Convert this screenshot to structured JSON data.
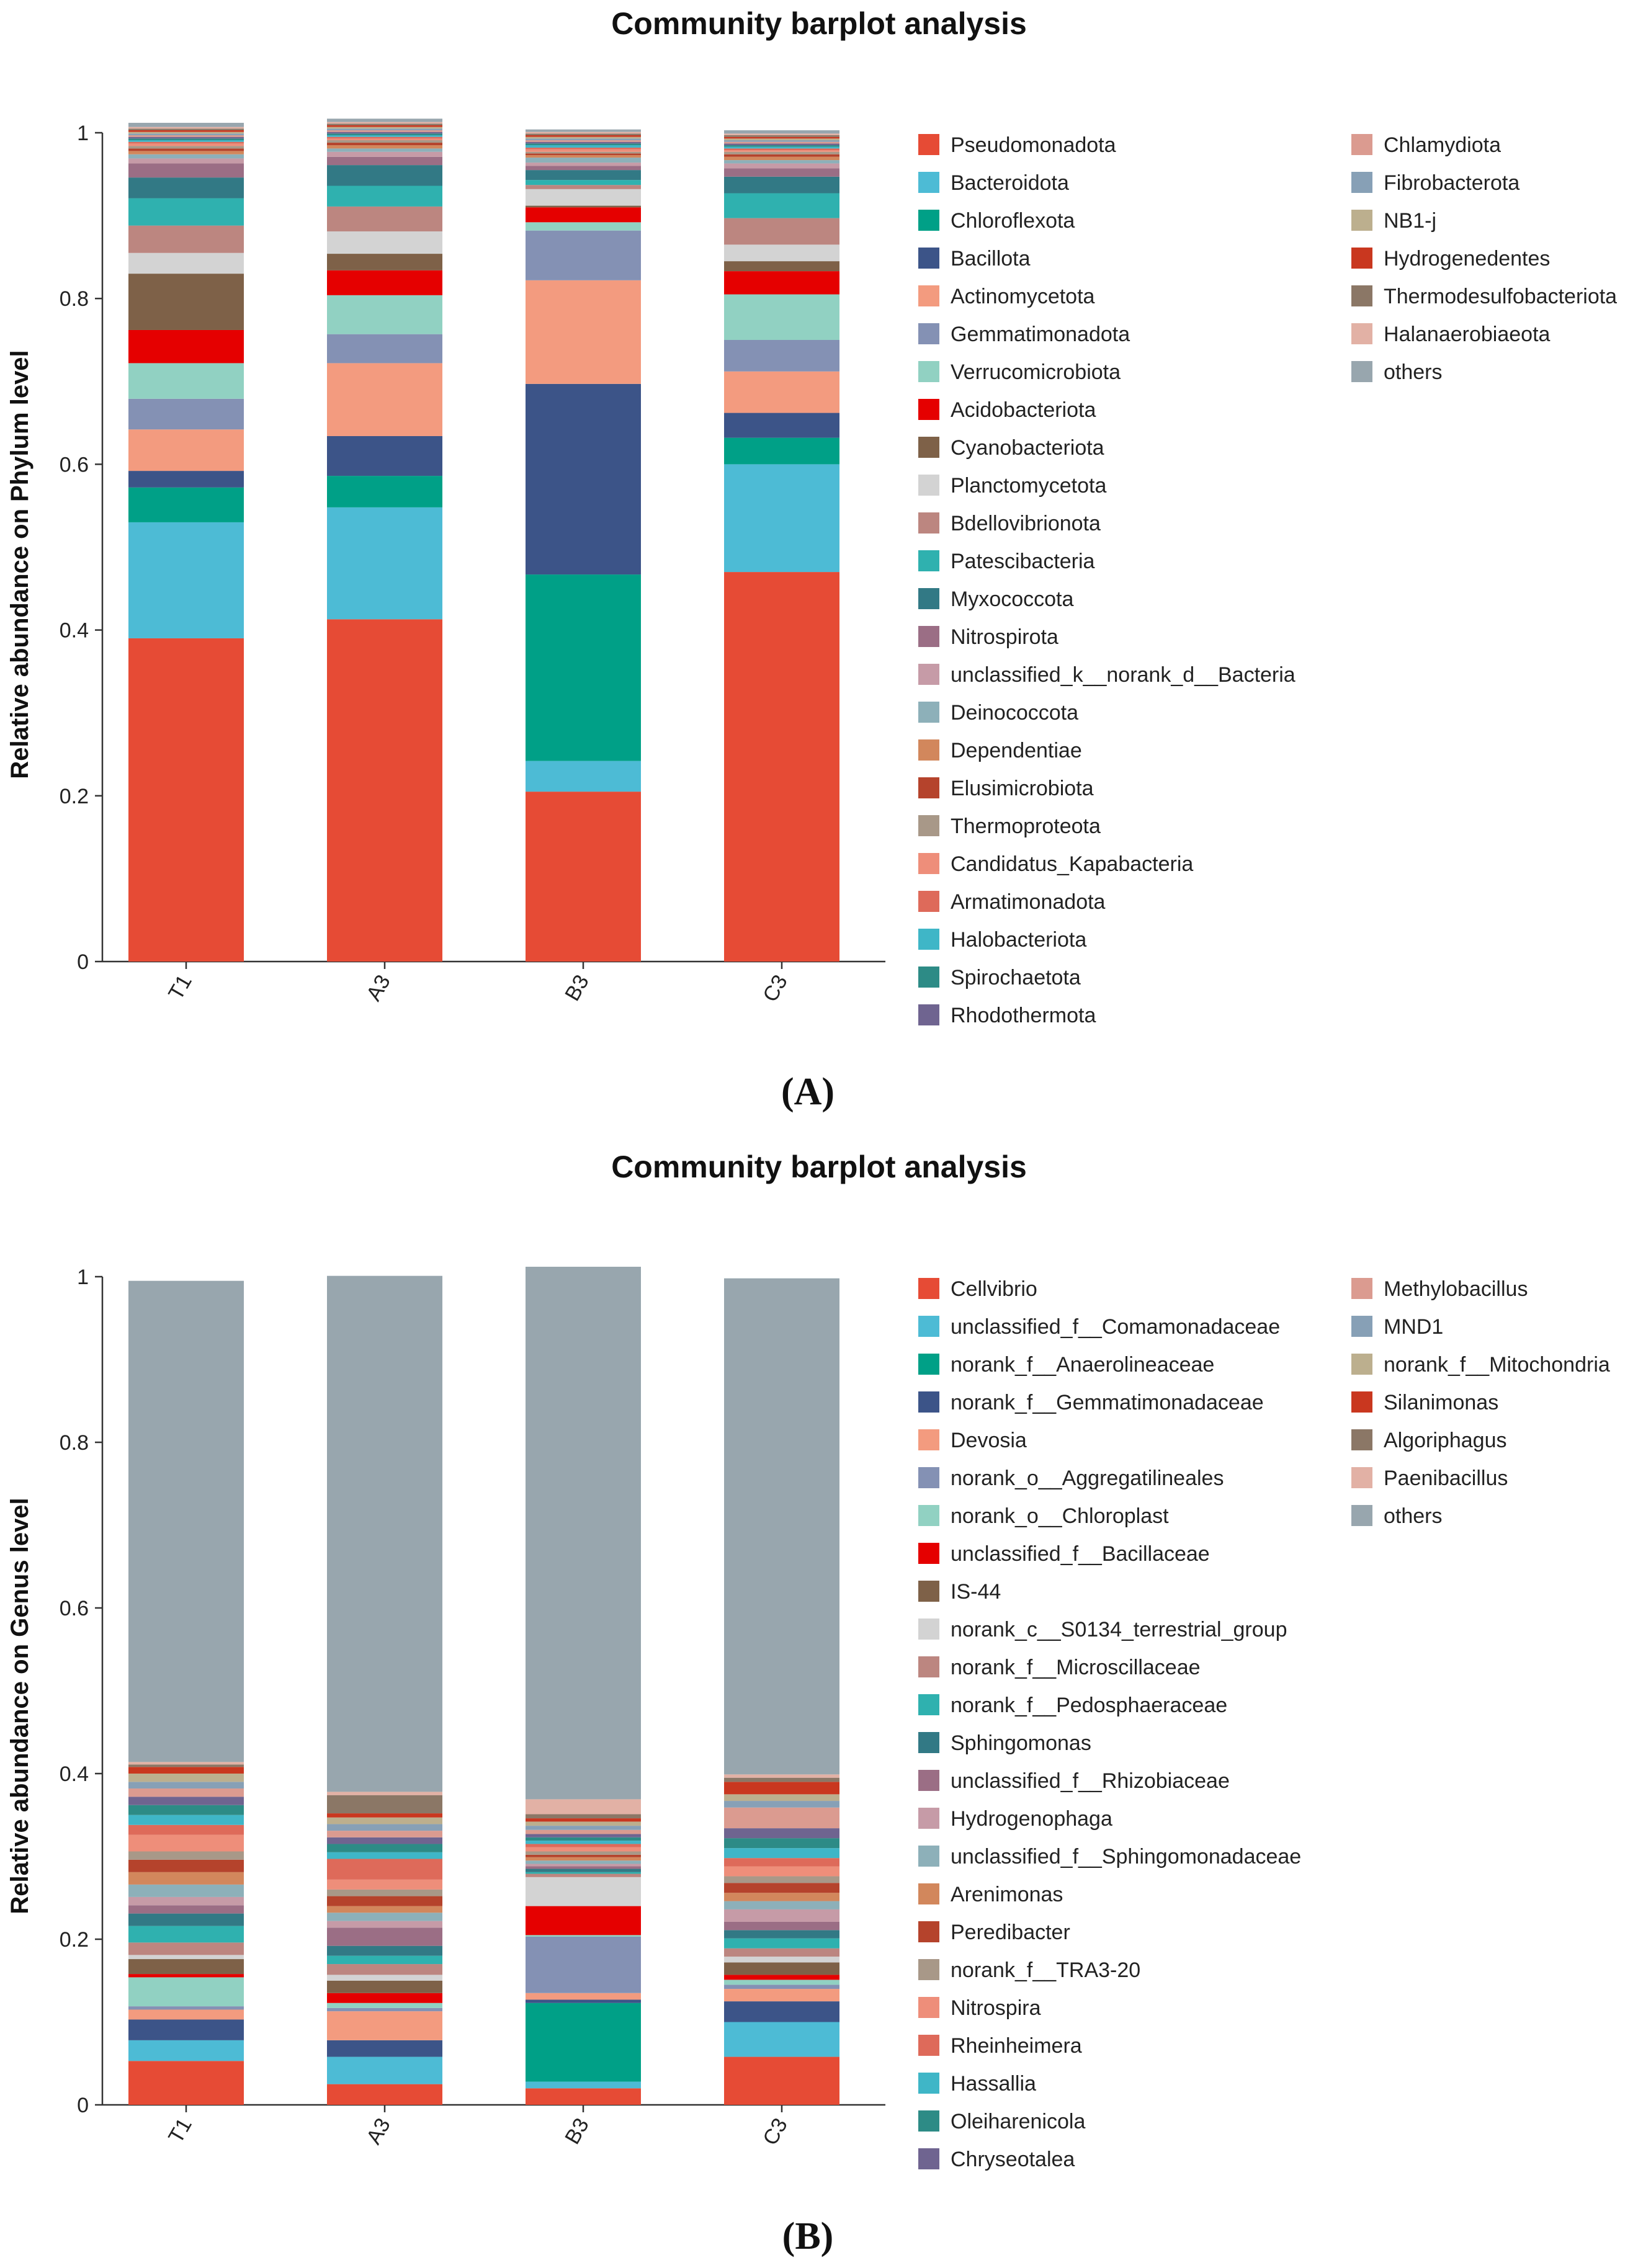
{
  "chart_data": [
    {
      "type": "bar",
      "stacked": true,
      "panel_label": "(A)",
      "title": "Community barplot analysis",
      "xlabel": "",
      "ylabel": "Relative abundance on Phylum level",
      "ylim": [
        0,
        1
      ],
      "yticks": [
        "0",
        "0.2",
        "0.4",
        "0.6",
        "0.8",
        "1"
      ],
      "categories": [
        "T1",
        "A3",
        "B3",
        "C3"
      ],
      "legend_position": "right",
      "series": [
        {
          "name": "Pseudomonadota",
          "color": "#E64B35",
          "values": [
            0.39,
            0.413,
            0.205,
            0.47
          ]
        },
        {
          "name": "Bacteroidota",
          "color": "#4DBBD5",
          "values": [
            0.14,
            0.135,
            0.037,
            0.13
          ]
        },
        {
          "name": "Chloroflexota",
          "color": "#00A087",
          "values": [
            0.042,
            0.038,
            0.225,
            0.032
          ]
        },
        {
          "name": "Bacillota",
          "color": "#3C5488",
          "values": [
            0.02,
            0.048,
            0.23,
            0.03
          ]
        },
        {
          "name": "Actinomycetota",
          "color": "#F39B7F",
          "values": [
            0.05,
            0.088,
            0.125,
            0.05
          ]
        },
        {
          "name": "Gemmatimonadota",
          "color": "#8491B4",
          "values": [
            0.037,
            0.035,
            0.06,
            0.038
          ]
        },
        {
          "name": "Verrucomicrobiota",
          "color": "#91D1C2",
          "values": [
            0.043,
            0.047,
            0.01,
            0.055
          ]
        },
        {
          "name": "Acidobacteriota",
          "color": "#E50000",
          "values": [
            0.04,
            0.03,
            0.018,
            0.028
          ]
        },
        {
          "name": "Cyanobacteriota",
          "color": "#7E6148",
          "values": [
            0.068,
            0.02,
            0.002,
            0.012
          ]
        },
        {
          "name": "Planctomycetota",
          "color": "#D3D3D3",
          "values": [
            0.025,
            0.027,
            0.02,
            0.02
          ]
        },
        {
          "name": "Bdellovibrionota",
          "color": "#BC8680",
          "values": [
            0.033,
            0.03,
            0.005,
            0.032
          ]
        },
        {
          "name": "Patescibacteria",
          "color": "#2FB1AF",
          "values": [
            0.033,
            0.025,
            0.006,
            0.03
          ]
        },
        {
          "name": "Myxococcota",
          "color": "#327985",
          "values": [
            0.025,
            0.025,
            0.012,
            0.02
          ]
        },
        {
          "name": "Nitrospirota",
          "color": "#9B6E85",
          "values": [
            0.017,
            0.01,
            0.005,
            0.01
          ]
        },
        {
          "name": "unclassified_k__norank_d__Bacteria",
          "color": "#C69BA7",
          "values": [
            0.006,
            0.006,
            0.004,
            0.006
          ]
        },
        {
          "name": "Deinococcota",
          "color": "#8DB0B9",
          "values": [
            0.005,
            0.004,
            0.006,
            0.004
          ]
        },
        {
          "name": "Dependentiae",
          "color": "#D2875C",
          "values": [
            0.004,
            0.004,
            0.003,
            0.004
          ]
        },
        {
          "name": "Elusimicrobiota",
          "color": "#B5432C",
          "values": [
            0.003,
            0.003,
            0.002,
            0.003
          ]
        },
        {
          "name": "Thermoproteota",
          "color": "#A89888",
          "values": [
            0.003,
            0.003,
            0.002,
            0.003
          ]
        },
        {
          "name": "Candidatus_Kapabacteria",
          "color": "#EE8E7A",
          "values": [
            0.003,
            0.002,
            0.003,
            0.002
          ]
        },
        {
          "name": "Armatimonadota",
          "color": "#DE6A5A",
          "values": [
            0.002,
            0.002,
            0.002,
            0.002
          ]
        },
        {
          "name": "Halobacteriota",
          "color": "#3FB6C7",
          "values": [
            0.002,
            0.002,
            0.003,
            0.002
          ]
        },
        {
          "name": "Spirochaetota",
          "color": "#2D8B86",
          "values": [
            0.002,
            0.002,
            0.002,
            0.002
          ]
        },
        {
          "name": "Rhodothermota",
          "color": "#6F6490",
          "values": [
            0.002,
            0.002,
            0.002,
            0.002
          ]
        },
        {
          "name": "Chlamydiota",
          "color": "#DB9B90",
          "values": [
            0.002,
            0.002,
            0.002,
            0.002
          ]
        },
        {
          "name": "Fibrobacterota",
          "color": "#87A0B6",
          "values": [
            0.002,
            0.002,
            0.002,
            0.002
          ]
        },
        {
          "name": "NB1-j",
          "color": "#BCAF8E",
          "values": [
            0.002,
            0.002,
            0.002,
            0.002
          ]
        },
        {
          "name": "Hydrogenedentes",
          "color": "#C9371F",
          "values": [
            0.002,
            0.002,
            0.002,
            0.002
          ]
        },
        {
          "name": "Thermodesulfobacteriota",
          "color": "#8B7766",
          "values": [
            0.002,
            0.002,
            0.002,
            0.002
          ]
        },
        {
          "name": "Halanaerobiaeota",
          "color": "#E2B1A5",
          "values": [
            0.002,
            0.002,
            0.002,
            0.002
          ]
        },
        {
          "name": "others",
          "color": "#98A6AE",
          "values": [
            0.005,
            0.004,
            0.003,
            0.004
          ]
        }
      ]
    },
    {
      "type": "bar",
      "stacked": true,
      "panel_label": "(B)",
      "title": "Community barplot analysis",
      "xlabel": "",
      "ylabel": "Relative abundance on Genus level",
      "ylim": [
        0,
        1
      ],
      "yticks": [
        "0",
        "0.2",
        "0.4",
        "0.6",
        "0.8",
        "1"
      ],
      "categories": [
        "T1",
        "A3",
        "B3",
        "C3"
      ],
      "legend_position": "right",
      "series": [
        {
          "name": "Cellvibrio",
          "color": "#E64B35",
          "values": [
            0.053,
            0.025,
            0.02,
            0.058
          ]
        },
        {
          "name": "unclassified_f__Comamonadaceae",
          "color": "#4DBBD5",
          "values": [
            0.025,
            0.033,
            0.008,
            0.042
          ]
        },
        {
          "name": "norank_f__Anaerolineaceae",
          "color": "#00A087",
          "values": [
            0.0,
            0.0,
            0.095,
            0.0
          ]
        },
        {
          "name": "norank_f__Gemmatimonadaceae",
          "color": "#3C5488",
          "values": [
            0.025,
            0.02,
            0.004,
            0.025
          ]
        },
        {
          "name": "Devosia",
          "color": "#F39B7F",
          "values": [
            0.012,
            0.035,
            0.008,
            0.015
          ]
        },
        {
          "name": "norank_o__Aggregatilineales",
          "color": "#8491B4",
          "values": [
            0.004,
            0.004,
            0.068,
            0.005
          ]
        },
        {
          "name": "norank_o__Chloroplast",
          "color": "#91D1C2",
          "values": [
            0.035,
            0.006,
            0.002,
            0.006
          ]
        },
        {
          "name": "unclassified_f__Bacillaceae",
          "color": "#E50000",
          "values": [
            0.004,
            0.012,
            0.035,
            0.006
          ]
        },
        {
          "name": "IS-44",
          "color": "#7E6148",
          "values": [
            0.018,
            0.015,
            0.0,
            0.015
          ]
        },
        {
          "name": "norank_c__S0134_terrestrial_group",
          "color": "#D3D3D3",
          "values": [
            0.005,
            0.007,
            0.035,
            0.007
          ]
        },
        {
          "name": "norank_f__Microscillaceae",
          "color": "#BC8680",
          "values": [
            0.015,
            0.013,
            0.004,
            0.01
          ]
        },
        {
          "name": "norank_f__Pedosphaeraceae",
          "color": "#2FB1AF",
          "values": [
            0.02,
            0.01,
            0.002,
            0.012
          ]
        },
        {
          "name": "Sphingomonas",
          "color": "#327985",
          "values": [
            0.015,
            0.012,
            0.004,
            0.01
          ]
        },
        {
          "name": "unclassified_f__Rhizobiaceae",
          "color": "#9B6E85",
          "values": [
            0.01,
            0.022,
            0.003,
            0.01
          ]
        },
        {
          "name": "Hydrogenophaga",
          "color": "#C69BA7",
          "values": [
            0.01,
            0.008,
            0.003,
            0.015
          ]
        },
        {
          "name": "unclassified_f__Sphingomonadaceae",
          "color": "#8DB0B9",
          "values": [
            0.015,
            0.01,
            0.004,
            0.01
          ]
        },
        {
          "name": "Arenimonas",
          "color": "#D2875C",
          "values": [
            0.015,
            0.008,
            0.004,
            0.01
          ]
        },
        {
          "name": "Peredibacter",
          "color": "#B5432C",
          "values": [
            0.015,
            0.012,
            0.003,
            0.012
          ]
        },
        {
          "name": "norank_f__TRA3-20",
          "color": "#A89888",
          "values": [
            0.01,
            0.008,
            0.004,
            0.008
          ]
        },
        {
          "name": "Nitrospira",
          "color": "#EE8E7A",
          "values": [
            0.02,
            0.012,
            0.005,
            0.012
          ]
        },
        {
          "name": "Rheinheimera",
          "color": "#DE6A5A",
          "values": [
            0.012,
            0.025,
            0.004,
            0.01
          ]
        },
        {
          "name": "Hassallia",
          "color": "#3FB6C7",
          "values": [
            0.012,
            0.008,
            0.004,
            0.012
          ]
        },
        {
          "name": "Oleiharenicola",
          "color": "#2D8B86",
          "values": [
            0.012,
            0.01,
            0.004,
            0.012
          ]
        },
        {
          "name": "Chryseotalea",
          "color": "#6F6490",
          "values": [
            0.01,
            0.008,
            0.004,
            0.012
          ]
        },
        {
          "name": "Methylobacillus",
          "color": "#DB9B90",
          "values": [
            0.01,
            0.008,
            0.005,
            0.025
          ]
        },
        {
          "name": "MND1",
          "color": "#87A0B6",
          "values": [
            0.008,
            0.008,
            0.005,
            0.008
          ]
        },
        {
          "name": "norank_f__Mitochondria",
          "color": "#BCAF8E",
          "values": [
            0.01,
            0.008,
            0.005,
            0.008
          ]
        },
        {
          "name": "Silanimonas",
          "color": "#C9371F",
          "values": [
            0.008,
            0.005,
            0.004,
            0.015
          ]
        },
        {
          "name": "Algoriphagus",
          "color": "#8B7766",
          "values": [
            0.003,
            0.022,
            0.005,
            0.005
          ]
        },
        {
          "name": "Paenibacillus",
          "color": "#E2B1A5",
          "values": [
            0.003,
            0.004,
            0.018,
            0.004
          ]
        },
        {
          "name": "others",
          "color": "#98A6AE",
          "values": [
            0.581,
            0.623,
            0.643,
            0.599
          ]
        }
      ]
    }
  ]
}
